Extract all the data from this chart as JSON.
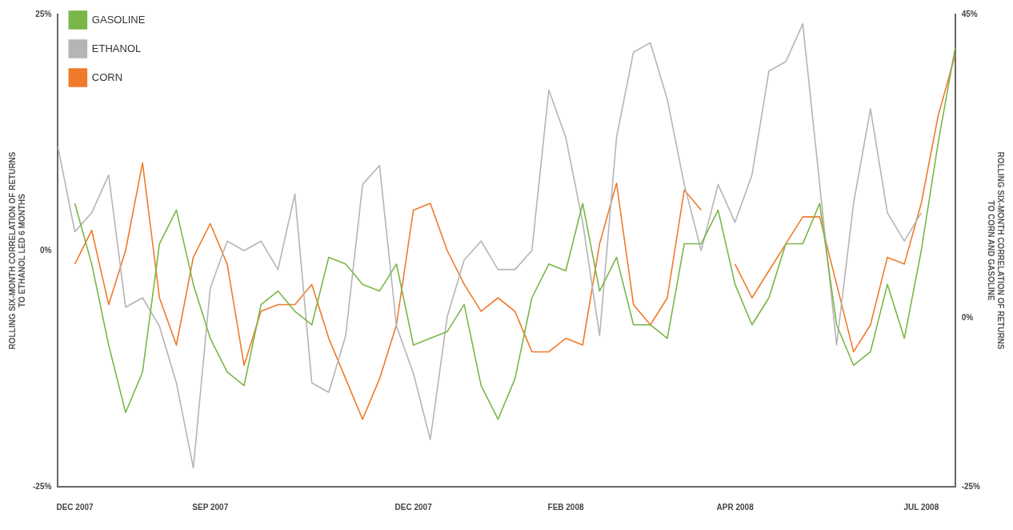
{
  "chart_data": {
    "type": "line",
    "ylabel": "ROLLING SIX-MONTH CORRELATION OF RETURNS\nTO ETHANOL LED 6 MONTHS",
    "y2label": "ROLLING SIX-MONTH CORRELATION OF RETURNS\nTO CORN AND GASOLINE",
    "categories": [
      null,
      "DEC 2007",
      null,
      null,
      null,
      null,
      null,
      null,
      null,
      "SEP 2007",
      null,
      null,
      null,
      null,
      null,
      null,
      null,
      null,
      null,
      null,
      null,
      "DEC 2007",
      null,
      null,
      null,
      null,
      null,
      null,
      null,
      null,
      "FEB 2008",
      null,
      null,
      null,
      null,
      null,
      null,
      null,
      null,
      null,
      "APR 2008",
      null,
      null,
      null,
      null,
      null,
      null,
      null,
      null,
      null,
      null,
      "JUL 2008",
      null,
      null
    ],
    "series": [
      {
        "name": "GASOLINE",
        "color": "#7ab648",
        "axis": "y2",
        "values": [
          null,
          17,
          8,
          -4,
          -14,
          -8,
          11,
          16,
          5,
          -3,
          -8,
          -10,
          2,
          4,
          1,
          -1,
          9,
          8,
          5,
          4,
          8,
          -4,
          -3,
          -2,
          2,
          -10,
          -15,
          -9,
          3,
          8,
          7,
          17,
          4,
          9,
          -1,
          -1,
          -3,
          11,
          11,
          16,
          5,
          -1,
          3,
          11,
          11,
          17,
          -1,
          -7,
          -5,
          5,
          -3,
          10,
          26,
          40
        ]
      },
      {
        "name": "ETHANOL",
        "color": "#b5b5b8",
        "axis": "y",
        "values": [
          11,
          2,
          4,
          8,
          -6,
          -5,
          -8,
          -14,
          -23,
          -4,
          1,
          0,
          1,
          -2,
          6,
          -14,
          -15,
          -9,
          7,
          9,
          -8,
          -13,
          -20,
          -7,
          -1,
          1,
          -2,
          -2,
          0,
          17,
          12,
          3,
          -9,
          12,
          21,
          22,
          16,
          7,
          0,
          7,
          3,
          8,
          19,
          20,
          24,
          7,
          -10,
          5,
          15,
          4,
          1,
          4,
          null,
          null
        ]
      },
      {
        "name": "CORN",
        "color": "#f07a2a",
        "axis": "y2",
        "values": [
          null,
          8,
          13,
          2,
          10,
          23,
          3,
          -4,
          9,
          14,
          8,
          -7,
          1,
          2,
          2,
          5,
          -3,
          -9,
          -15,
          -9,
          -1,
          16,
          17,
          10,
          5,
          1,
          3,
          1,
          -5,
          -5,
          -3,
          -4,
          11,
          20,
          2,
          -1,
          3,
          19,
          16,
          null,
          8,
          3,
          7,
          11,
          15,
          15,
          5,
          -5,
          -1,
          9,
          8,
          17,
          30,
          39
        ]
      }
    ],
    "ylim": [
      -25,
      25
    ],
    "yticks": [
      {
        "value": -25,
        "label": "-25%"
      },
      {
        "value": 0,
        "label": "0%"
      },
      {
        "value": 25,
        "label": "25%"
      }
    ],
    "y2lim": [
      -25,
      45
    ],
    "y2ticks": [
      {
        "value": -25,
        "label": "-25%"
      },
      {
        "value": 0,
        "label": "0%"
      },
      {
        "value": 45,
        "label": "45%"
      }
    ],
    "legend": "top left",
    "marker": "none",
    "line_style": "solid"
  }
}
